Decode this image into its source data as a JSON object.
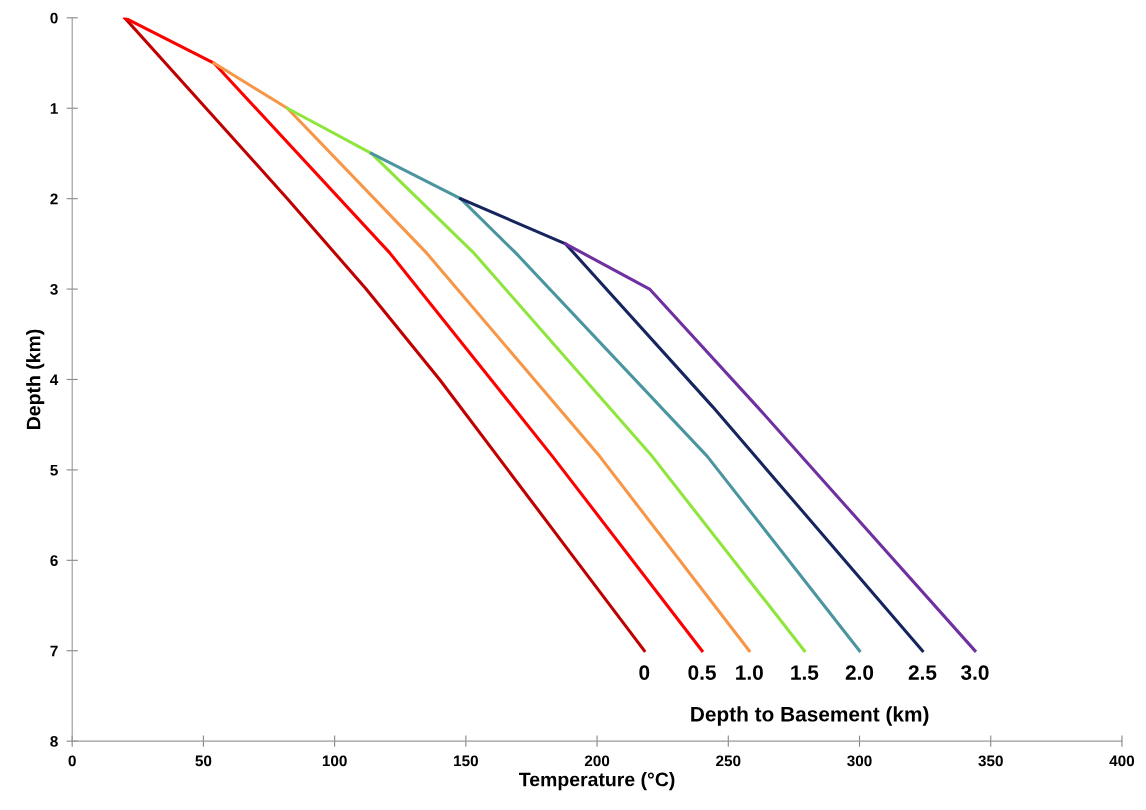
{
  "chart_data": {
    "type": "line",
    "xlabel": "Temperature (°C)",
    "ylabel": "Depth (km)",
    "legend_title": "Depth to Basement (km)",
    "xlim": [
      0,
      400
    ],
    "xticks": [
      0,
      50,
      100,
      150,
      200,
      250,
      300,
      350,
      400
    ],
    "ylim": [
      8,
      0
    ],
    "yticks": [
      0,
      1,
      2,
      3,
      4,
      5,
      6,
      7,
      8
    ],
    "grid": false,
    "legend": false,
    "marker": "none",
    "line_style": "solid",
    "series": [
      {
        "name": "0",
        "color": "#c00000",
        "x": [
          20,
          51,
          82,
          112,
          140,
          166,
          192,
          218
        ],
        "values": [
          0,
          1,
          2,
          3,
          4,
          5,
          6,
          7
        ]
      },
      {
        "name": "0.5",
        "color": "#ff0000",
        "x": [
          20,
          54,
          121,
          183,
          240
        ],
        "values": [
          0,
          0.5,
          2.6,
          4.85,
          7
        ]
      },
      {
        "name": "1.0",
        "color": "#f79646",
        "x": [
          54,
          82,
          135,
          201,
          258
        ],
        "values": [
          0.5,
          1,
          2.6,
          4.85,
          7
        ]
      },
      {
        "name": "1.5",
        "color": "#8ee63c",
        "x": [
          82,
          114,
          153,
          221,
          279
        ],
        "values": [
          1,
          1.5,
          2.6,
          4.85,
          7
        ]
      },
      {
        "name": "2.0",
        "color": "#4a95a0",
        "x": [
          114,
          148,
          169,
          242,
          300
        ],
        "values": [
          1.5,
          2,
          2.6,
          4.85,
          7
        ]
      },
      {
        "name": "2.5",
        "color": "#17255e",
        "x": [
          148,
          188,
          244,
          324
        ],
        "values": [
          2,
          2.5,
          4.3,
          7
        ]
      },
      {
        "name": "3.0",
        "color": "#7030a0",
        "x": [
          188,
          220,
          261,
          344
        ],
        "values": [
          2.5,
          3,
          4.3,
          7
        ]
      }
    ]
  }
}
